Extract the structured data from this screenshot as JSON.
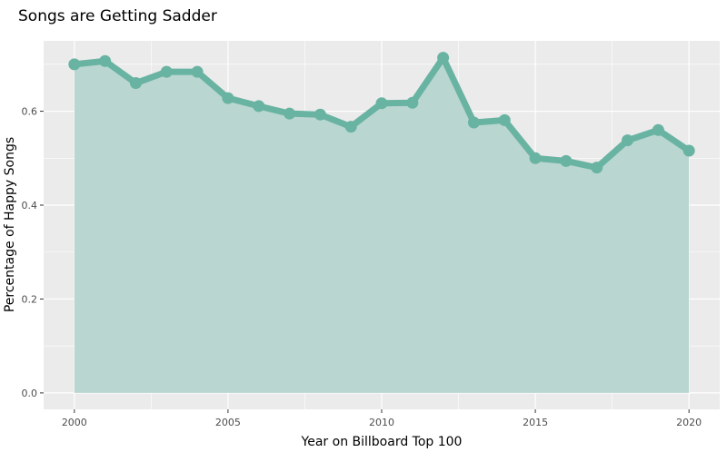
{
  "chart_data": {
    "type": "area",
    "title": "Songs are Getting Sadder",
    "xlabel": "Year on Billboard Top 100",
    "ylabel": "Percentage of Happy Songs",
    "x": [
      2000,
      2001,
      2002,
      2003,
      2004,
      2005,
      2006,
      2007,
      2008,
      2009,
      2010,
      2011,
      2012,
      2013,
      2014,
      2015,
      2016,
      2017,
      2018,
      2019,
      2020
    ],
    "series": [
      {
        "values": [
          0.7,
          0.707,
          0.66,
          0.684,
          0.684,
          0.628,
          0.611,
          0.595,
          0.593,
          0.567,
          0.617,
          0.618,
          0.714,
          0.576,
          0.581,
          0.5,
          0.494,
          0.48,
          0.538,
          0.56,
          0.516
        ]
      }
    ],
    "xlim": [
      1999.0,
      2021.0
    ],
    "ylim": [
      -0.035,
      0.75
    ],
    "xticks": [
      2000,
      2005,
      2010,
      2015,
      2020
    ],
    "yticks": [
      0.0,
      0.2,
      0.4,
      0.6
    ],
    "ytick_labels": [
      "0.0",
      "0.2",
      "0.4",
      "0.6"
    ],
    "grid": true,
    "colors": {
      "line": "#69b3a2",
      "fill": "#b9d6d1",
      "panel": "#ebebeb",
      "grid": "#ffffff"
    }
  }
}
